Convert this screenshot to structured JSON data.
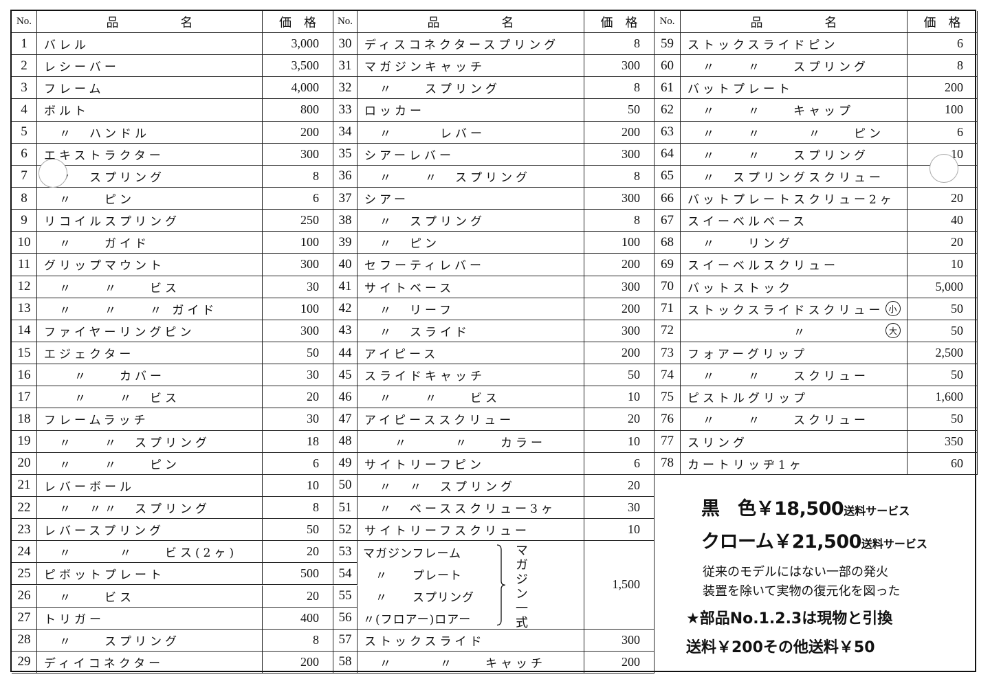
{
  "headers": {
    "no": "No.",
    "name": "品　　　　　名",
    "price": "価　格"
  },
  "left": [
    {
      "no": "1",
      "name": "バレル",
      "price": "3,000"
    },
    {
      "no": "2",
      "name": "レシーバー",
      "price": "3,500"
    },
    {
      "no": "3",
      "name": "フレーム",
      "price": "4,000"
    },
    {
      "no": "4",
      "name": "ボルト",
      "price": "800"
    },
    {
      "no": "5",
      "name": "　〃　ハンドル",
      "price": "200"
    },
    {
      "no": "6",
      "name": "エキストラクター",
      "price": "300"
    },
    {
      "no": "7",
      "name": "　〃　スプリング",
      "price": "8"
    },
    {
      "no": "8",
      "name": "　〃　　ピン",
      "price": "6"
    },
    {
      "no": "9",
      "name": "リコイルスプリング",
      "price": "250"
    },
    {
      "no": "10",
      "name": "　〃　　ガイド",
      "price": "100"
    },
    {
      "no": "11",
      "name": "グリップマウント",
      "price": "300"
    },
    {
      "no": "12",
      "name": "　〃　　〃　　ビス",
      "price": "30"
    },
    {
      "no": "13",
      "name": "　〃　　〃　　〃 ガイド",
      "price": "100"
    },
    {
      "no": "14",
      "name": "ファイヤーリングピン",
      "price": "300"
    },
    {
      "no": "15",
      "name": "エジェクター",
      "price": "50"
    },
    {
      "no": "16",
      "name": "　　〃　　カバー",
      "price": "30"
    },
    {
      "no": "17",
      "name": "　　〃　　〃　ビス",
      "price": "20"
    },
    {
      "no": "18",
      "name": "フレームラッチ",
      "price": "30"
    },
    {
      "no": "19",
      "name": "　〃　　〃　スプリング",
      "price": "18"
    },
    {
      "no": "20",
      "name": "　〃　　〃　　ピン",
      "price": "6"
    },
    {
      "no": "21",
      "name": "レバーボール",
      "price": "10"
    },
    {
      "no": "22",
      "name": "　〃　〃〃　スプリング",
      "price": "8"
    },
    {
      "no": "23",
      "name": "レバースプリング",
      "price": "50"
    },
    {
      "no": "24",
      "name": "　〃　　　〃　　ビス(2ヶ)",
      "price": "20"
    },
    {
      "no": "25",
      "name": "ピボットプレート",
      "price": "500"
    },
    {
      "no": "26",
      "name": "　〃　　ビス",
      "price": "20"
    },
    {
      "no": "27",
      "name": "トリガー",
      "price": "400"
    },
    {
      "no": "28",
      "name": "　〃　　スプリング",
      "price": "8"
    },
    {
      "no": "29",
      "name": "ディイコネクター",
      "price": "200"
    }
  ],
  "middle": [
    {
      "no": "30",
      "name": "ディスコネクタースプリング",
      "price": "8"
    },
    {
      "no": "31",
      "name": "マガジンキャッチ",
      "price": "300"
    },
    {
      "no": "32",
      "name": "　〃　　スプリング",
      "price": "8"
    },
    {
      "no": "33",
      "name": "ロッカー",
      "price": "50"
    },
    {
      "no": "34",
      "name": "　〃　　　レバー",
      "price": "200"
    },
    {
      "no": "35",
      "name": "シアーレバー",
      "price": "300"
    },
    {
      "no": "36",
      "name": "　〃　　〃　スプリング",
      "price": "8"
    },
    {
      "no": "37",
      "name": "シアー",
      "price": "300"
    },
    {
      "no": "38",
      "name": "　〃　スプリング",
      "price": "8"
    },
    {
      "no": "39",
      "name": "　〃　ピン",
      "price": "100"
    },
    {
      "no": "40",
      "name": "セフーティレバー",
      "price": "200"
    },
    {
      "no": "41",
      "name": "サイトベース",
      "price": "300"
    },
    {
      "no": "42",
      "name": "　〃　リーフ",
      "price": "200"
    },
    {
      "no": "43",
      "name": "　〃　スライド",
      "price": "300"
    },
    {
      "no": "44",
      "name": "アイピース",
      "price": "200"
    },
    {
      "no": "45",
      "name": "スライドキャッチ",
      "price": "50"
    },
    {
      "no": "46",
      "name": "　〃　　〃　　ビス",
      "price": "10"
    },
    {
      "no": "47",
      "name": "アイピーススクリュー",
      "price": "20"
    },
    {
      "no": "48",
      "name": "　　〃　　　〃　　カラー",
      "price": "10"
    },
    {
      "no": "49",
      "name": "サイトリーフピン",
      "price": "6"
    },
    {
      "no": "50",
      "name": "　〃　〃　スプリング",
      "price": "20"
    },
    {
      "no": "51",
      "name": "　〃　ベーススクリュー3ヶ",
      "price": "30"
    },
    {
      "no": "52",
      "name": "サイトリーフスクリュー",
      "price": "10"
    }
  ],
  "magazine_group": {
    "items": [
      {
        "no": "53",
        "name": "マガジンフレーム"
      },
      {
        "no": "54",
        "name": "　〃　　プレート"
      },
      {
        "no": "55",
        "name": "　〃　　スプリング"
      },
      {
        "no": "56",
        "name": "〃(フロアー)ロアー"
      }
    ],
    "label": "マガジン一式",
    "price": "1,500"
  },
  "middle_tail": [
    {
      "no": "57",
      "name": "ストックスライド",
      "price": "300"
    },
    {
      "no": "58",
      "name": "　〃　　　〃　　キャッチ",
      "price": "200"
    }
  ],
  "right": [
    {
      "no": "59",
      "name": "ストックスライドピン",
      "price": "6"
    },
    {
      "no": "60",
      "name": "　〃　　〃　　スプリング",
      "price": "8"
    },
    {
      "no": "61",
      "name": "バットプレート",
      "price": "200"
    },
    {
      "no": "62",
      "name": "　〃　　〃　　キャップ",
      "price": "100"
    },
    {
      "no": "63",
      "name": "　〃　　〃　　　〃　　ピン",
      "price": "6"
    },
    {
      "no": "64",
      "name": "　〃　　〃　　スプリング",
      "price": "10"
    },
    {
      "no": "65",
      "name": "　〃　スプリングスクリュー",
      "price": ""
    },
    {
      "no": "66",
      "name": "バットプレートスクリュー2ヶ",
      "price": "20"
    },
    {
      "no": "67",
      "name": "スイーベルベース",
      "price": "40"
    },
    {
      "no": "68",
      "name": "　〃　　リング",
      "price": "20"
    },
    {
      "no": "69",
      "name": "スイーベルスクリュー",
      "price": "10"
    },
    {
      "no": "70",
      "name": "バットストック",
      "price": "5,000"
    },
    {
      "no": "71",
      "name": "ストックスライドスクリュー",
      "mark": "小",
      "price": "50"
    },
    {
      "no": "72",
      "name": "　　　　　　　〃　　　　　",
      "mark": "大",
      "price": "50"
    },
    {
      "no": "73",
      "name": "フォアーグリップ",
      "price": "2,500"
    },
    {
      "no": "74",
      "name": "　〃　　〃　　スクリュー",
      "price": "50"
    },
    {
      "no": "75",
      "name": "ピストルグリップ",
      "price": "1,600"
    },
    {
      "no": "76",
      "name": "　〃　　〃　　スクリュー",
      "price": "50"
    },
    {
      "no": "77",
      "name": "スリング",
      "price": "350"
    },
    {
      "no": "78",
      "name": "カートリッヂ1ヶ",
      "price": "60"
    }
  ],
  "note": {
    "black_label": "黒　色",
    "black_price": "￥18,500",
    "black_shipping": "送料サービス",
    "chrome_label": "クローム",
    "chrome_price": "￥21,500",
    "chrome_shipping": "送料サービス",
    "desc_line1": "従来のモデルにはない一部の発火",
    "desc_line2": "装置を除いて実物の復元化を図った",
    "exchange": "★部品No.1.2.3は現物と引換",
    "shipping": "送料￥200その他送料￥50"
  }
}
